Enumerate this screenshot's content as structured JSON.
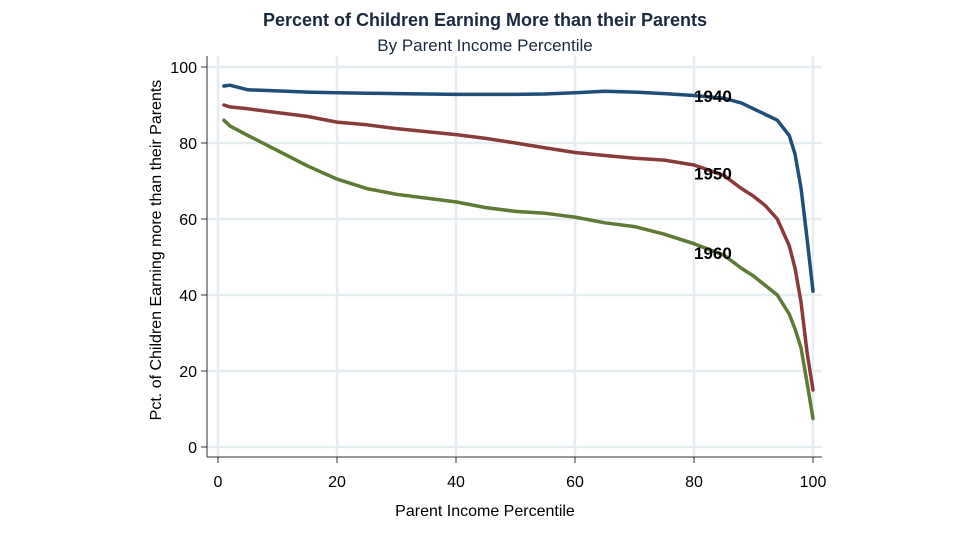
{
  "chart_data": {
    "type": "line",
    "title": "Percent of Children Earning More than their Parents",
    "subtitle": "By Parent Income Percentile",
    "xlabel": "Parent Income Percentile",
    "ylabel": "Pct. of Children Earning more than their Parents",
    "xlim": [
      0,
      100
    ],
    "ylim": [
      0,
      100
    ],
    "x_ticks": [
      0,
      20,
      40,
      60,
      80,
      100
    ],
    "y_ticks": [
      0,
      20,
      40,
      60,
      80,
      100
    ],
    "grid": true,
    "x": [
      1,
      2,
      5,
      10,
      15,
      20,
      25,
      30,
      35,
      40,
      45,
      50,
      55,
      60,
      65,
      70,
      75,
      80,
      85,
      88,
      90,
      92,
      94,
      96,
      97,
      98,
      99,
      100
    ],
    "series": [
      {
        "name": "1940",
        "label": "1940",
        "color": "#1f4e79",
        "values": [
          95,
          95.2,
          94,
          93.7,
          93.4,
          93.2,
          93.1,
          93,
          92.9,
          92.8,
          92.8,
          92.8,
          92.9,
          93.2,
          93.6,
          93.4,
          93,
          92.5,
          91.8,
          90.5,
          89,
          87.5,
          86,
          82,
          77,
          68,
          55,
          41
        ]
      },
      {
        "name": "1950",
        "label": "1950",
        "color": "#8b3a3a",
        "values": [
          90,
          89.5,
          89,
          88,
          87,
          85.5,
          84.8,
          83.8,
          83,
          82.2,
          81.2,
          80,
          78.7,
          77.5,
          76.7,
          76,
          75.5,
          74.2,
          71.5,
          68,
          66,
          63.5,
          60,
          53,
          47,
          38,
          25,
          15
        ]
      },
      {
        "name": "1960",
        "label": "1960",
        "color": "#5e7a34",
        "values": [
          86,
          84.5,
          82,
          78,
          74,
          70.5,
          68,
          66.5,
          65.5,
          64.5,
          63,
          62,
          61.5,
          60.5,
          59,
          58,
          56,
          53.5,
          50.5,
          47,
          45,
          42.5,
          40,
          35,
          31,
          26,
          17,
          7.5
        ]
      }
    ]
  }
}
